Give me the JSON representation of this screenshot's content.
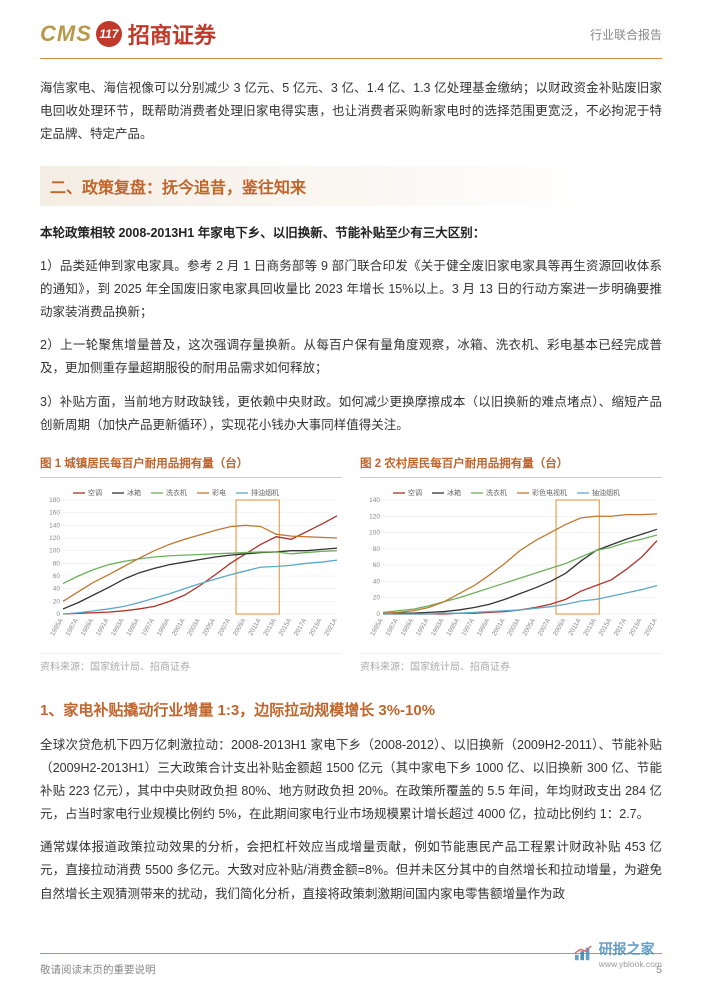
{
  "header": {
    "logo_cms": "CMS",
    "logo_badge": "117",
    "logo_cn": "招商证券",
    "report_type": "行业联合报告"
  },
  "intro": "海信家电、海信视像可以分别减少 3 亿元、5 亿元、3 亿、1.4 亿、1.3 亿处理基金缴纳；以财政资金补贴废旧家电回收处理环节，既帮助消费者处理旧家电得实惠，也让消费者采购新家电时的选择范围更宽泛，不必拘泥于特定品牌、特定产品。",
  "section2": {
    "heading": "二、政策复盘：抚今追昔，鉴往知来",
    "lead": "本轮政策相较 2008-2013H1 年家电下乡、以旧换新、节能补贴至少有三大区别：",
    "p1": "1）品类延伸到家电家具。参考 2 月 1 日商务部等 9 部门联合印发《关于健全废旧家电家具等再生资源回收体系的通知》，到 2025 年全国废旧家电家具回收量比 2023 年增长 15%以上。3 月 13 日的行动方案进一步明确要推动家装消费品换新；",
    "p2": "2）上一轮聚焦增量普及，这次强调存量换新。从每百户保有量角度观察，冰箱、洗衣机、彩电基本已经完成普及，更加侧重存量超期服役的耐用品需求如何释放；",
    "p3": "3）补贴方面，当前地方财政缺钱，更依赖中央财政。如何减少更换摩擦成本（以旧换新的难点堵点）、缩短产品创新周期（加快产品更新循环），实现花小钱办大事同样值得关注。"
  },
  "charts": {
    "fig1": {
      "title": "图 1  城镇居民每百户耐用品拥有量（台）",
      "source": "资料来源：国家统计局、招商证券",
      "type": "line",
      "ylim": [
        0,
        180
      ],
      "ytick_step": 20,
      "bg": "#ffffff",
      "grid_color": "#e8e8e8",
      "highlight_x": [
        24,
        30
      ],
      "x_labels": [
        "1985A",
        "1987A",
        "1989A",
        "1991A",
        "1993A",
        "1995A",
        "1997A",
        "1999A",
        "2001A",
        "2003A",
        "2005A",
        "2007A",
        "2009A",
        "2011A",
        "2013A",
        "2015A",
        "2017A",
        "2019A",
        "2021A"
      ],
      "series": [
        {
          "name": "空调",
          "color": "#b0312a",
          "values": [
            0,
            1,
            2,
            3,
            5,
            8,
            12,
            20,
            30,
            45,
            62,
            80,
            95,
            110,
            122,
            118,
            130,
            142,
            155
          ]
        },
        {
          "name": "冰箱",
          "color": "#333333",
          "values": [
            8,
            18,
            30,
            42,
            55,
            65,
            72,
            78,
            82,
            86,
            90,
            93,
            95,
            97,
            98,
            100,
            100,
            102,
            104
          ]
        },
        {
          "name": "洗衣机",
          "color": "#6db05c",
          "values": [
            48,
            60,
            70,
            78,
            83,
            87,
            90,
            92,
            93,
            94,
            95,
            96,
            97,
            98,
            98,
            95,
            97,
            99,
            100
          ]
        },
        {
          "name": "彩电",
          "color": "#c07830",
          "values": [
            20,
            35,
            50,
            62,
            75,
            88,
            100,
            110,
            118,
            125,
            132,
            138,
            140,
            138,
            126,
            123,
            122,
            121,
            120
          ]
        },
        {
          "name": "排油烟机",
          "color": "#5aa9c8",
          "values": [
            0,
            2,
            5,
            8,
            12,
            18,
            25,
            32,
            40,
            48,
            55,
            62,
            68,
            74,
            75,
            77,
            80,
            82,
            85
          ]
        }
      ]
    },
    "fig2": {
      "title": "图 2  农村居民每百户耐用品拥有量（台）",
      "source": "资料来源：国家统计局、招商证券",
      "type": "line",
      "ylim": [
        0,
        140
      ],
      "ytick_step": 20,
      "bg": "#ffffff",
      "grid_color": "#e8e8e8",
      "highlight_x": [
        24,
        30
      ],
      "x_labels": [
        "1985A",
        "1987A",
        "1989A",
        "1991A",
        "1993A",
        "1995A",
        "1997A",
        "1999A",
        "2001A",
        "2003A",
        "2005A",
        "2007A",
        "2009A",
        "2011A",
        "2013A",
        "2015A",
        "2017A",
        "2019A",
        "2021A"
      ],
      "series": [
        {
          "name": "空调",
          "color": "#b0312a",
          "values": [
            0,
            0,
            0,
            0,
            0,
            1,
            1,
            2,
            3,
            5,
            8,
            12,
            18,
            28,
            35,
            42,
            55,
            70,
            90
          ]
        },
        {
          "name": "冰箱",
          "color": "#333333",
          "values": [
            0,
            1,
            1,
            2,
            3,
            5,
            8,
            12,
            18,
            25,
            32,
            40,
            50,
            65,
            78,
            85,
            92,
            98,
            104
          ]
        },
        {
          "name": "洗衣机",
          "color": "#6db05c",
          "values": [
            2,
            4,
            6,
            10,
            15,
            20,
            26,
            32,
            38,
            44,
            50,
            56,
            62,
            70,
            78,
            82,
            88,
            92,
            97
          ]
        },
        {
          "name": "彩色电视机",
          "color": "#c07830",
          "values": [
            1,
            2,
            4,
            8,
            15,
            25,
            35,
            48,
            62,
            78,
            90,
            100,
            110,
            118,
            120,
            120,
            122,
            122,
            123
          ]
        },
        {
          "name": "抽油烟机",
          "color": "#5aa9c8",
          "values": [
            0,
            0,
            0,
            0,
            1,
            1,
            2,
            3,
            4,
            5,
            7,
            9,
            12,
            16,
            18,
            22,
            26,
            30,
            35
          ]
        }
      ]
    }
  },
  "sub1": {
    "heading": "1、家电补贴撬动行业增量 1:3，边际拉动规模增长 3%-10%",
    "p1": "全球次贷危机下四万亿刺激拉动：2008-2013H1 家电下乡（2008-2012）、以旧换新（2009H2-2011）、节能补贴（2009H2-2013H1）三大政策合计支出补贴金额超 1500 亿元（其中家电下乡 1000 亿、以旧换新 300 亿、节能补贴 223 亿元），其中中央财政负担 80%、地方财政负担 20%。在政策所覆盖的 5.5 年间，年均财政支出 284 亿元，占当时家电行业规模比例约 5%，在此期间家电行业市场规模累计增长超过 4000 亿，拉动比例约 1：2.7。",
    "p2": "通常媒体报道政策拉动效果的分析，会把杠杆效应当成增量贡献，例如节能惠民产品工程累计财政补贴 453 亿元，直接拉动消费 5500 多亿元。大致对应补贴/消费金额=8%。但并未区分其中的自然增长和拉动增量，为避免自然增长主观猜测带来的扰动，我们简化分析，直接将政策刺激期间国内家电零售额增量作为政"
  },
  "footer": {
    "note": "敬请阅读末页的重要说明",
    "page": "5"
  },
  "watermark": {
    "name": "研报之家",
    "url": "www.yblook.com"
  }
}
